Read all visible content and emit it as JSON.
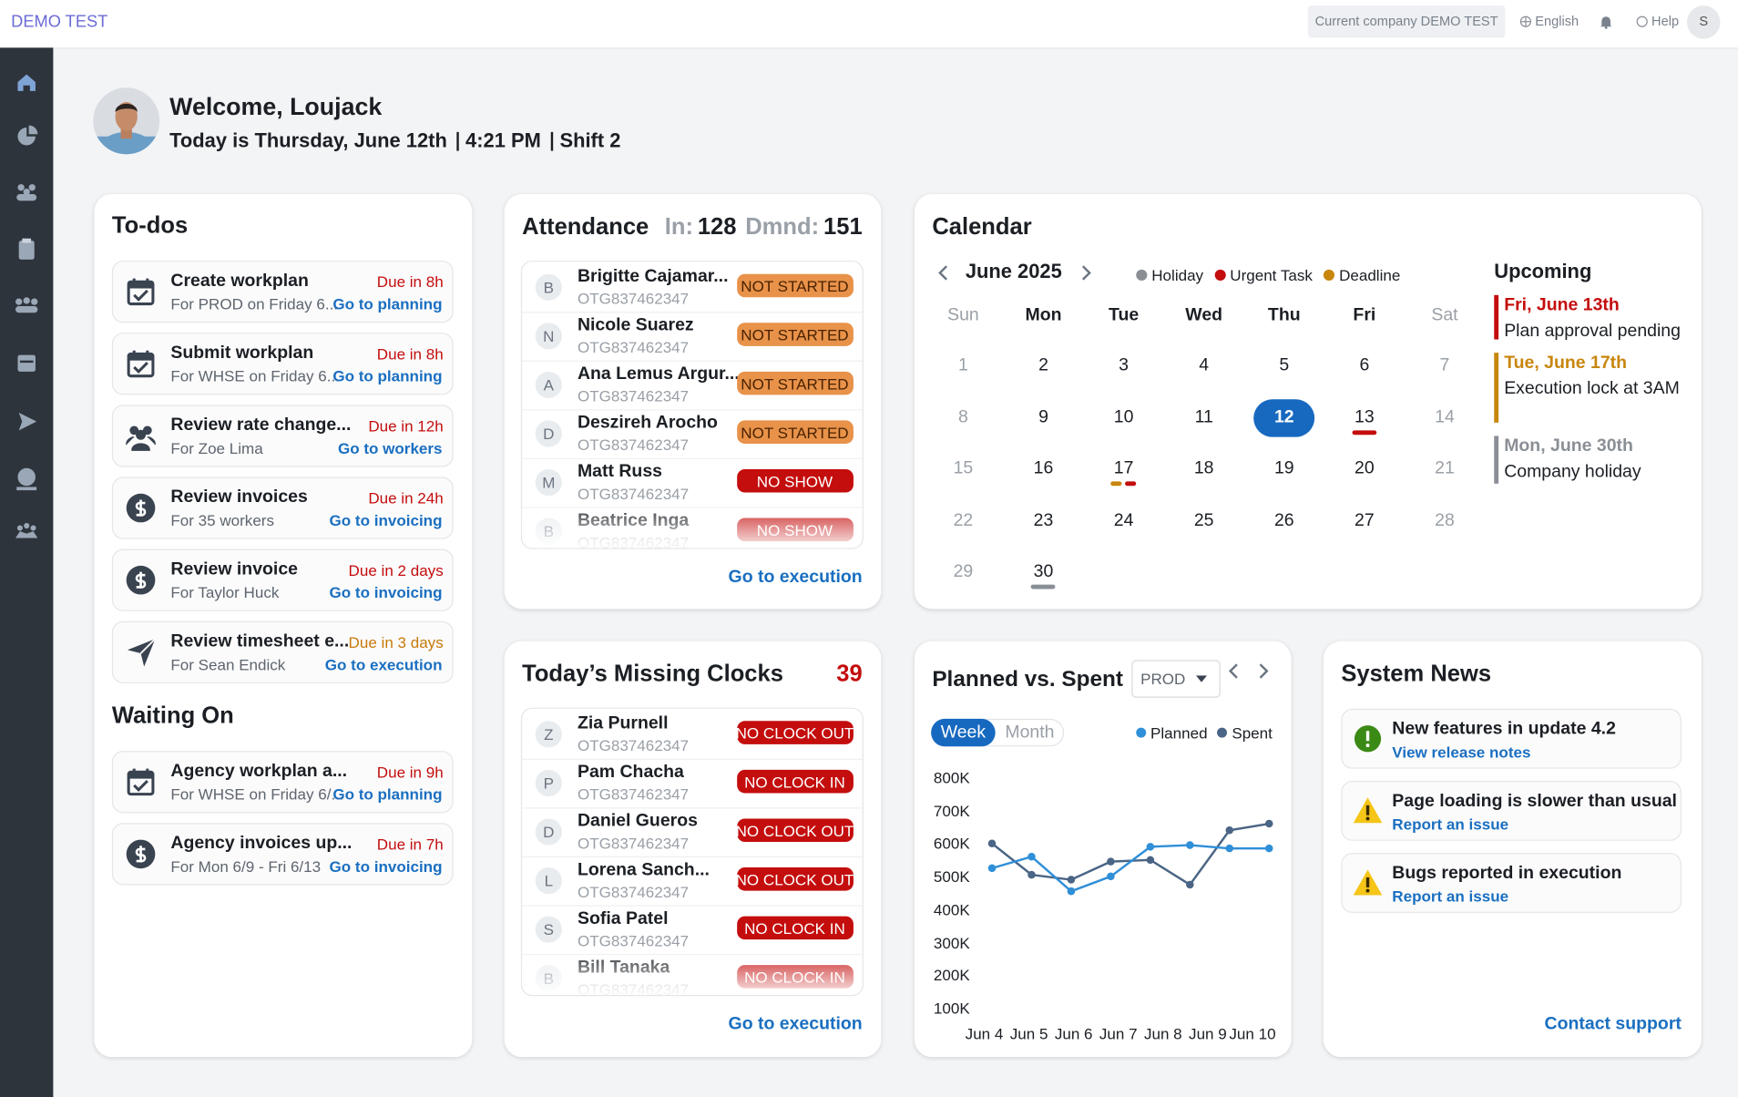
{
  "header": {
    "brand": "DEMO TEST",
    "company": "Current company DEMO TEST",
    "language": "English",
    "help": "Help",
    "avatar": "S"
  },
  "welcome": {
    "title": "Welcome, Loujack",
    "date": "Today is Thursday, June 12th",
    "time": "4:21 PM",
    "shift": "Shift 2"
  },
  "todos": {
    "title": "To-dos",
    "items": [
      {
        "title": "Create workplan",
        "due": "Due in 8h",
        "due_color": "#c40d0d",
        "sub": "For PROD on Friday 6...",
        "link": "Go to planning"
      },
      {
        "title": "Submit workplan",
        "due": "Due in 8h",
        "due_color": "#c40d0d",
        "sub": "For WHSE on Friday 6...",
        "link": "Go to planning"
      },
      {
        "title": "Review rate change...",
        "due": "Due in 12h",
        "due_color": "#c40d0d",
        "sub": "For Zoe Lima",
        "link": "Go to workers"
      },
      {
        "title": "Review invoices",
        "due": "Due in 24h",
        "due_color": "#c40d0d",
        "sub": "For 35 workers",
        "link": "Go to invoicing"
      },
      {
        "title": "Review invoice",
        "due": "Due in 2 days",
        "due_color": "#c40d0d",
        "sub": "For Taylor Huck",
        "link": "Go to invoicing"
      },
      {
        "title": "Review timesheet e...",
        "due": "Due in 3 days",
        "due_color": "#c77a0a",
        "sub": "For Sean Endick",
        "link": "Go to execution"
      }
    ],
    "waiting_title": "Waiting On",
    "waiting": [
      {
        "title": "Agency workplan a...",
        "due": "Due in 9h",
        "due_color": "#c40d0d",
        "sub": "For WHSE on Friday 6/...",
        "link": "Go to planning"
      },
      {
        "title": "Agency invoices up...",
        "due": "Due in 7h",
        "due_color": "#c40d0d",
        "sub": "For Mon 6/9 - Fri 6/13",
        "link": "Go to invoicing"
      }
    ]
  },
  "attendance": {
    "title": "Attendance",
    "in_label": "In:",
    "in": 128,
    "demand_label": "Dmnd:",
    "demand": 151,
    "link": "Go to execution",
    "rows": [
      {
        "initial": "B",
        "name": "Brigitte Cajamar...",
        "id": "OTG837462347",
        "status": "NOT STARTED",
        "color": "#e8924a",
        "text_color": "#4a2200"
      },
      {
        "initial": "N",
        "name": "Nicole Suarez",
        "id": "OTG837462347",
        "status": "NOT STARTED",
        "color": "#e8924a",
        "text_color": "#4a2200"
      },
      {
        "initial": "A",
        "name": "Ana Lemus Argur...",
        "id": "OTG837462347",
        "status": "NOT STARTED",
        "color": "#e8924a",
        "text_color": "#4a2200"
      },
      {
        "initial": "D",
        "name": "Deszireh Arocho",
        "id": "OTG837462347",
        "status": "NOT STARTED",
        "color": "#e8924a",
        "text_color": "#4a2200"
      },
      {
        "initial": "M",
        "name": "Matt Russ",
        "id": "OTG837462347",
        "status": "NO SHOW",
        "color": "#c40d0d",
        "text_color": "#ffffff"
      },
      {
        "initial": "B",
        "name": "Beatrice Inga",
        "id": "OTG837462347",
        "status": "NO SHOW",
        "color": "#c40d0d",
        "text_color": "#ffffff"
      }
    ]
  },
  "missing": {
    "title": "Today’s Missing Clocks",
    "count": 39,
    "link": "Go to execution",
    "rows": [
      {
        "initial": "Z",
        "name": "Zia Purnell",
        "id": "OTG837462347",
        "status": "NO CLOCK OUT"
      },
      {
        "initial": "P",
        "name": "Pam Chacha",
        "id": "OTG837462347",
        "status": "NO CLOCK IN"
      },
      {
        "initial": "D",
        "name": "Daniel Gueros",
        "id": "OTG837462347",
        "status": "NO CLOCK OUT"
      },
      {
        "initial": "L",
        "name": "Lorena Sanch...",
        "id": "OTG837462347",
        "status": "NO CLOCK OUT"
      },
      {
        "initial": "S",
        "name": "Sofia Patel",
        "id": "OTG837462347",
        "status": "NO CLOCK IN"
      },
      {
        "initial": "B",
        "name": "Bill Tanaka",
        "id": "OTG837462347",
        "status": "NO CLOCK IN"
      }
    ]
  },
  "calendar": {
    "title": "Calendar",
    "month": "June 2025",
    "legend": [
      {
        "label": "Holiday",
        "color": "#8a8f96"
      },
      {
        "label": "Urgent Task",
        "color": "#c40d0d"
      },
      {
        "label": "Deadline",
        "color": "#c8860d"
      }
    ],
    "weekdays": [
      "Sun",
      "Mon",
      "Tue",
      "Wed",
      "Thu",
      "Fri",
      "Sat"
    ],
    "days": [
      1,
      2,
      3,
      4,
      5,
      6,
      7,
      8,
      9,
      10,
      11,
      12,
      13,
      14,
      15,
      16,
      17,
      18,
      19,
      20,
      21,
      22,
      23,
      24,
      25,
      26,
      27,
      28,
      29,
      30
    ],
    "today": 12,
    "events": [
      {
        "day": 13,
        "colors": [
          "#c40d0d"
        ]
      },
      {
        "day": 17,
        "colors": [
          "#c8860d",
          "#c40d0d"
        ]
      },
      {
        "day": 30,
        "colors": [
          "#8a8f96"
        ]
      }
    ],
    "upcoming_title": "Upcoming",
    "upcoming": [
      {
        "date": "Fri, June 13th",
        "text": "Plan approval pending",
        "color": "#c40d0d"
      },
      {
        "date": "Tue, June 17th",
        "text": "Execution lock at 3AM",
        "color": "#c8860d"
      },
      {
        "date": "Mon, June 30th",
        "text": "Company holiday",
        "color": "#8a8f96"
      }
    ]
  },
  "chart_data": {
    "type": "line",
    "title": "Planned vs. Spent",
    "filter": "PROD",
    "periods": [
      "Week",
      "Month"
    ],
    "categories": [
      "Jun 4",
      "Jun 5",
      "Jun 6",
      "Jun 7",
      "Jun 8",
      "Jun 9",
      "Jun 10",
      null
    ],
    "series": [
      {
        "name": "Planned",
        "color": "#2f8fd8",
        "values": [
          525000,
          560000,
          455000,
          500000,
          590000,
          595000,
          585000,
          585000
        ]
      },
      {
        "name": "Spent",
        "color": "#4a6585",
        "values": [
          600000,
          505000,
          490000,
          545000,
          550000,
          475000,
          640000,
          660000
        ]
      }
    ],
    "ylim": [
      100000,
      800000
    ],
    "yticks": [
      {
        "value": 100000,
        "label": "100K"
      },
      {
        "value": 200000,
        "label": "200K"
      },
      {
        "value": 300000,
        "label": "300K"
      },
      {
        "value": 400000,
        "label": "400K"
      },
      {
        "value": 500000,
        "label": "500K"
      },
      {
        "value": 600000,
        "label": "600K"
      },
      {
        "value": 700000,
        "label": "700K"
      },
      {
        "value": 800000,
        "label": "800K"
      }
    ],
    "grid": false
  },
  "news": {
    "title": "System News",
    "link": "Contact support",
    "items": [
      {
        "title": "New features in update 4.2",
        "link": "View release notes"
      },
      {
        "title": "Page loading is slower than usual",
        "link": "Report an issue"
      },
      {
        "title": "Bugs reported in execution",
        "link": "Report an issue"
      }
    ]
  }
}
